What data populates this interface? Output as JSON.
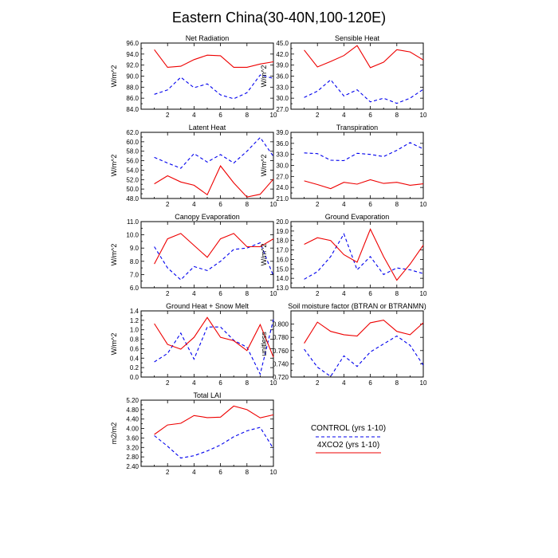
{
  "figure": {
    "title": "Eastern China(30-40N,100-120E)"
  },
  "legend": {
    "control_label": "CONTROL (yrs 1-10)",
    "exp_label": "4XCO2 (yrs 1-10)"
  },
  "colors": {
    "control": "#0000ee",
    "exp": "#ee0000"
  },
  "chart_data": [
    {
      "type": "line",
      "title": "Net Radiation",
      "ylabel": "W/m^2",
      "xlabel": "",
      "ylim": [
        84.0,
        96.0
      ],
      "yticks": [
        84.0,
        86.0,
        88.0,
        90.0,
        92.0,
        94.0,
        96.0
      ],
      "xticks": [
        2,
        4,
        6,
        8,
        10
      ],
      "x": [
        1,
        2,
        3,
        4,
        5,
        6,
        7,
        8,
        9,
        10
      ],
      "series": [
        {
          "name": "CONTROL (yrs 1-10)",
          "values": [
            86.7,
            87.5,
            89.8,
            87.9,
            88.6,
            86.6,
            85.9,
            87.0,
            90.2,
            89.6
          ]
        },
        {
          "name": "4XCO2 (yrs 1-10)",
          "values": [
            94.8,
            91.6,
            91.8,
            93.0,
            93.8,
            93.7,
            91.6,
            91.6,
            92.2,
            92.6
          ]
        }
      ]
    },
    {
      "type": "line",
      "title": "Sensible Heat",
      "ylabel": "W/m^2",
      "xlabel": "",
      "ylim": [
        27.0,
        45.0
      ],
      "yticks": [
        27.0,
        30.0,
        33.0,
        36.0,
        39.0,
        42.0,
        45.0
      ],
      "xticks": [
        2,
        4,
        6,
        8,
        10
      ],
      "x": [
        1,
        2,
        3,
        4,
        5,
        6,
        7,
        8,
        9,
        10
      ],
      "series": [
        {
          "name": "CONTROL (yrs 1-10)",
          "values": [
            30.2,
            31.9,
            35.0,
            30.6,
            32.3,
            29.0,
            30.0,
            28.6,
            30.0,
            32.4
          ]
        },
        {
          "name": "4XCO2 (yrs 1-10)",
          "values": [
            43.1,
            38.5,
            40.0,
            41.6,
            44.3,
            38.3,
            39.8,
            43.2,
            42.6,
            40.4
          ]
        }
      ]
    },
    {
      "type": "line",
      "title": "Latent Heat",
      "ylabel": "W/m^2",
      "xlabel": "",
      "ylim": [
        48.0,
        62.0
      ],
      "yticks": [
        48.0,
        50.0,
        52.0,
        54.0,
        56.0,
        58.0,
        60.0,
        62.0
      ],
      "xticks": [
        2,
        4,
        6,
        8,
        10
      ],
      "x": [
        1,
        2,
        3,
        4,
        5,
        6,
        7,
        8,
        9,
        10
      ],
      "series": [
        {
          "name": "CONTROL (yrs 1-10)",
          "values": [
            56.7,
            55.5,
            54.4,
            57.5,
            55.7,
            57.3,
            55.5,
            58.0,
            60.9,
            56.9
          ]
        },
        {
          "name": "4XCO2 (yrs 1-10)",
          "values": [
            51.1,
            52.8,
            51.5,
            50.8,
            48.8,
            54.9,
            51.3,
            48.3,
            48.9,
            52.1
          ]
        }
      ]
    },
    {
      "type": "line",
      "title": "Transpiration",
      "ylabel": "W/m^2",
      "xlabel": "",
      "ylim": [
        21.0,
        39.0
      ],
      "yticks": [
        21.0,
        24.0,
        27.0,
        30.0,
        33.0,
        36.0,
        39.0
      ],
      "xticks": [
        2,
        4,
        6,
        8,
        10
      ],
      "x": [
        1,
        2,
        3,
        4,
        5,
        6,
        7,
        8,
        9,
        10
      ],
      "series": [
        {
          "name": "CONTROL (yrs 1-10)",
          "values": [
            33.4,
            33.2,
            31.4,
            31.3,
            33.3,
            33.0,
            32.4,
            34.1,
            36.2,
            34.5
          ]
        },
        {
          "name": "4XCO2 (yrs 1-10)",
          "values": [
            25.8,
            24.8,
            23.7,
            25.4,
            24.9,
            26.1,
            25.1,
            25.4,
            24.6,
            25.0
          ]
        }
      ]
    },
    {
      "type": "line",
      "title": "Canopy Evaporation",
      "ylabel": "W/m^2",
      "xlabel": "",
      "ylim": [
        6.0,
        11.0
      ],
      "yticks": [
        6.0,
        7.0,
        8.0,
        9.0,
        10.0,
        11.0
      ],
      "xticks": [
        2,
        4,
        6,
        8,
        10
      ],
      "x": [
        1,
        2,
        3,
        4,
        5,
        6,
        7,
        8,
        9,
        10
      ],
      "series": [
        {
          "name": "CONTROL (yrs 1-10)",
          "values": [
            9.1,
            7.5,
            6.6,
            7.6,
            7.3,
            8.0,
            8.9,
            9.0,
            9.4,
            6.9
          ]
        },
        {
          "name": "4XCO2 (yrs 1-10)",
          "values": [
            7.8,
            9.7,
            10.1,
            9.2,
            8.3,
            9.7,
            10.1,
            9.1,
            9.1,
            9.7
          ]
        }
      ]
    },
    {
      "type": "line",
      "title": "Ground Evaporation",
      "ylabel": "W/m^2",
      "xlabel": "",
      "ylim": [
        13.0,
        20.0
      ],
      "yticks": [
        13.0,
        14.0,
        15.0,
        16.0,
        17.0,
        18.0,
        19.0,
        20.0
      ],
      "xticks": [
        2,
        4,
        6,
        8,
        10
      ],
      "x": [
        1,
        2,
        3,
        4,
        5,
        6,
        7,
        8,
        9,
        10
      ],
      "series": [
        {
          "name": "CONTROL (yrs 1-10)",
          "values": [
            13.9,
            14.7,
            16.3,
            18.7,
            14.9,
            16.3,
            14.4,
            15.1,
            14.9,
            14.5
          ]
        },
        {
          "name": "4XCO2 (yrs 1-10)",
          "values": [
            17.6,
            18.3,
            18.0,
            16.5,
            15.7,
            19.2,
            16.3,
            13.8,
            15.5,
            17.5
          ]
        }
      ]
    },
    {
      "type": "line",
      "title": "Ground Heat + Snow Melt",
      "ylabel": "W/m^2",
      "xlabel": "",
      "ylim": [
        0.0,
        1.4
      ],
      "yticks": [
        0.0,
        0.2,
        0.4,
        0.6,
        0.8,
        1.0,
        1.2,
        1.4
      ],
      "xticks": [
        2,
        4,
        6,
        8,
        10
      ],
      "x": [
        1,
        2,
        3,
        4,
        5,
        6,
        7,
        8,
        9,
        10
      ],
      "series": [
        {
          "name": "CONTROL (yrs 1-10)",
          "values": [
            0.32,
            0.5,
            0.93,
            0.38,
            1.06,
            1.06,
            0.78,
            0.63,
            0.06,
            1.22
          ]
        },
        {
          "name": "4XCO2 (yrs 1-10)",
          "values": [
            1.13,
            0.69,
            0.59,
            0.84,
            1.26,
            0.84,
            0.77,
            0.56,
            1.11,
            0.42
          ]
        }
      ]
    },
    {
      "type": "line",
      "title": "Soil moisture factor (BTRAN or BTRANMN)",
      "ylabel": "unitless",
      "xlabel": "",
      "ylim": [
        0.72,
        0.82
      ],
      "yticks": [
        0.72,
        0.74,
        0.76,
        0.78,
        0.8
      ],
      "xticks": [
        2,
        4,
        6,
        8,
        10
      ],
      "x": [
        1,
        2,
        3,
        4,
        5,
        6,
        7,
        8,
        9,
        10
      ],
      "series": [
        {
          "name": "CONTROL (yrs 1-10)",
          "values": [
            0.762,
            0.735,
            0.721,
            0.752,
            0.736,
            0.758,
            0.77,
            0.782,
            0.768,
            0.738
          ]
        },
        {
          "name": "4XCO2 (yrs 1-10)",
          "values": [
            0.771,
            0.803,
            0.789,
            0.784,
            0.782,
            0.802,
            0.806,
            0.789,
            0.784,
            0.802
          ]
        }
      ]
    },
    {
      "type": "line",
      "title": "Total LAI",
      "ylabel": "m2/m2",
      "xlabel": "",
      "ylim": [
        2.4,
        5.2
      ],
      "yticks": [
        2.4,
        2.8,
        3.2,
        3.6,
        4.0,
        4.4,
        4.8,
        5.2
      ],
      "xticks": [
        2,
        4,
        6,
        8,
        10
      ],
      "x": [
        1,
        2,
        3,
        4,
        5,
        6,
        7,
        8,
        9,
        10
      ],
      "series": [
        {
          "name": "CONTROL (yrs 1-10)",
          "values": [
            3.7,
            3.25,
            2.75,
            2.85,
            3.05,
            3.3,
            3.65,
            3.9,
            4.05,
            3.15
          ]
        },
        {
          "name": "4XCO2 (yrs 1-10)",
          "values": [
            3.75,
            4.15,
            4.22,
            4.55,
            4.46,
            4.48,
            4.95,
            4.8,
            4.45,
            4.58
          ]
        }
      ]
    }
  ]
}
